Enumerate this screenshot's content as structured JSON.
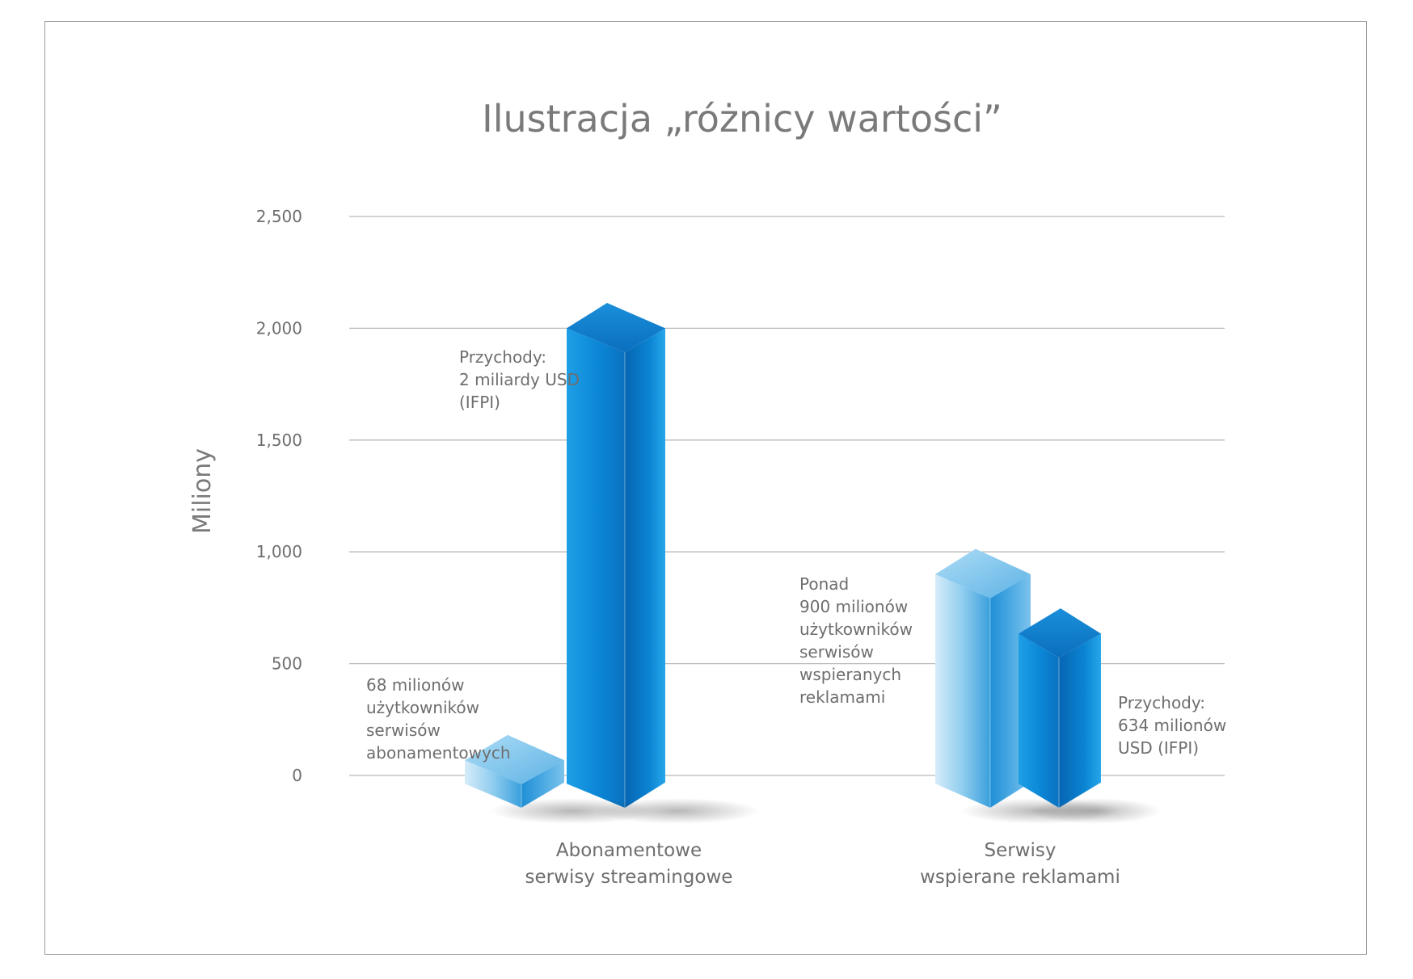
{
  "chart_data": {
    "type": "bar",
    "title": "Ilustracja „różnicy wartości”",
    "ylabel": "Miliony",
    "ylim": [
      0,
      2500
    ],
    "yticks": [
      0,
      500,
      1000,
      1500,
      2000,
      2500
    ],
    "ytick_labels": [
      "0",
      "500",
      "1,000",
      "1,500",
      "2,000",
      "2,500"
    ],
    "grid": true,
    "categories": [
      [
        "Abonamentowe",
        "serwisy streamingowe"
      ],
      [
        "Serwisy",
        "wspierane reklamami"
      ]
    ],
    "series": [
      {
        "role": "users",
        "color": "#8ccbed",
        "values": [
          68,
          900
        ]
      },
      {
        "role": "revenue",
        "color": "#0a7fcf",
        "values": [
          2000,
          634
        ]
      }
    ],
    "annotations": [
      {
        "lines": [
          "68 milionów",
          "użytkowników",
          "serwisów",
          "abonamentowych"
        ]
      },
      {
        "lines": [
          "Przychody:",
          "2 miliardy USD",
          "(IFPI)"
        ]
      },
      {
        "lines": [
          "Ponad",
          "900 milionów",
          "użytkowników",
          "serwisów",
          "wspieranych",
          "reklamami"
        ]
      },
      {
        "lines": [
          "Przychody:",
          "634 milionów",
          "USD (IFPI)"
        ]
      }
    ]
  }
}
